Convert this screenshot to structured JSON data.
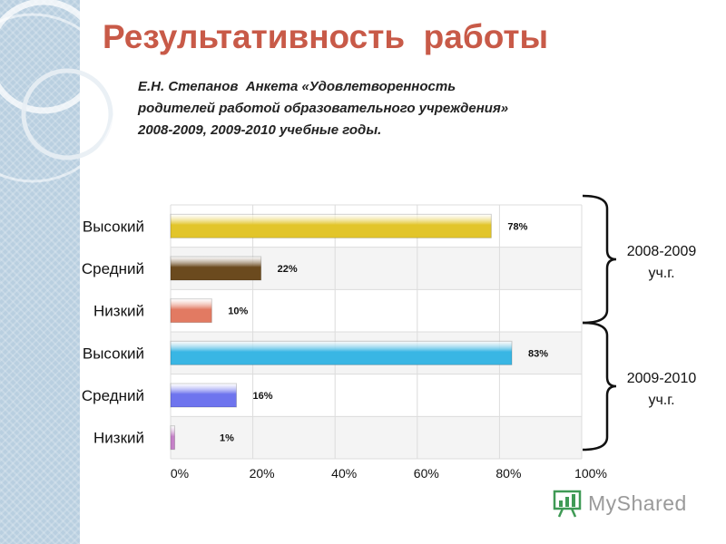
{
  "header": {
    "title": "Результативность  работы",
    "subtitle_lines": [
      "Е.Н. Степанов  Анкета «Удовлетворенность",
      "родителей работой образовательного учреждения»",
      "2008-2009, 2009-2010 учебные годы."
    ]
  },
  "watermark": {
    "text": "MyShared"
  },
  "colors": {
    "title": "#c85a48",
    "high_2008": "#e2c52a",
    "mid_2008": "#6b4a1e",
    "low_2008": "#e27a62",
    "high_2009": "#39b6e4",
    "mid_2009": "#6e74ee",
    "low_2009": "#c580c8"
  },
  "chart_data": {
    "type": "bar",
    "orientation": "horizontal",
    "categories": [
      "Высокий",
      "Средний",
      "Низкий",
      "Высокий",
      "Средний",
      "Низкий"
    ],
    "values": [
      78,
      22,
      10,
      83,
      16,
      1
    ],
    "value_labels": [
      "78%",
      "22%",
      "10%",
      "83%",
      "16%",
      "1%"
    ],
    "xlim": [
      0,
      100
    ],
    "x_ticks": [
      "0%",
      "20%",
      "40%",
      "60%",
      "80%",
      "100%"
    ],
    "grid": true,
    "groups": [
      {
        "label_lines": [
          "2008-2009",
          "уч.г."
        ],
        "rows": [
          0,
          1,
          2
        ]
      },
      {
        "label_lines": [
          "2009-2010",
          "уч.г."
        ],
        "rows": [
          3,
          4,
          5
        ]
      }
    ]
  }
}
